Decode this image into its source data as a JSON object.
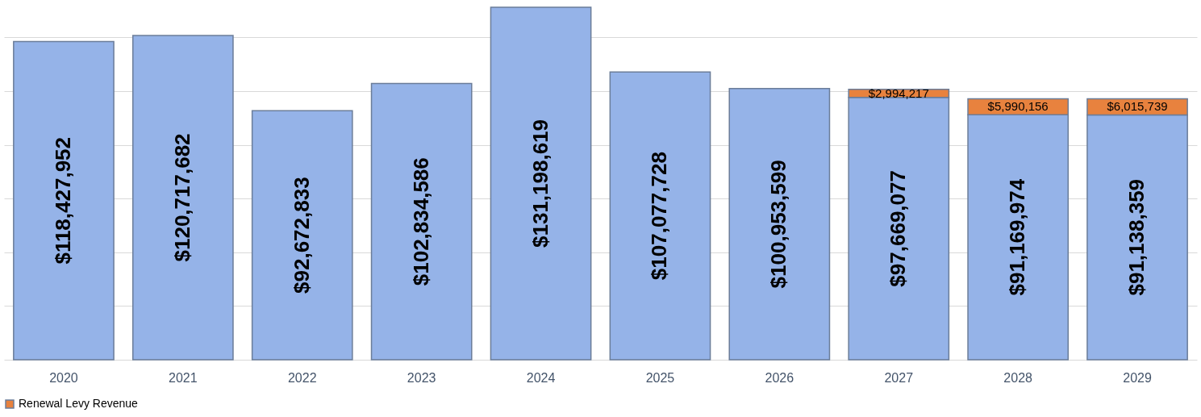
{
  "chart_data": {
    "type": "bar",
    "stacked": true,
    "categories": [
      "2020",
      "2021",
      "2022",
      "2023",
      "2024",
      "2025",
      "2026",
      "2027",
      "2028",
      "2029"
    ],
    "series": [
      {
        "color": "#95b3e8",
        "values": [
          118427952,
          120717682,
          92672833,
          102834586,
          131198619,
          107077728,
          100953599,
          97669077,
          91169974,
          91138359
        ],
        "value_labels": [
          "$118,427,952",
          "$120,717,682",
          "$92,672,833",
          "$102,834,586",
          "$131,198,619",
          "$107,077,728",
          "$100,953,599",
          "$97,669,077",
          "$91,169,974",
          "$91,138,359"
        ]
      },
      {
        "name": "Renewal Levy Revenue",
        "color": "#e8823e",
        "values": [
          null,
          null,
          null,
          null,
          null,
          null,
          null,
          2994217,
          5990156,
          6015739
        ],
        "value_labels": [
          null,
          null,
          null,
          null,
          null,
          null,
          null,
          "$2,994,217",
          "$5,990,156",
          "$6,015,739"
        ]
      }
    ],
    "tick_labels": "x",
    "grid": "y",
    "legend": "bottom"
  }
}
